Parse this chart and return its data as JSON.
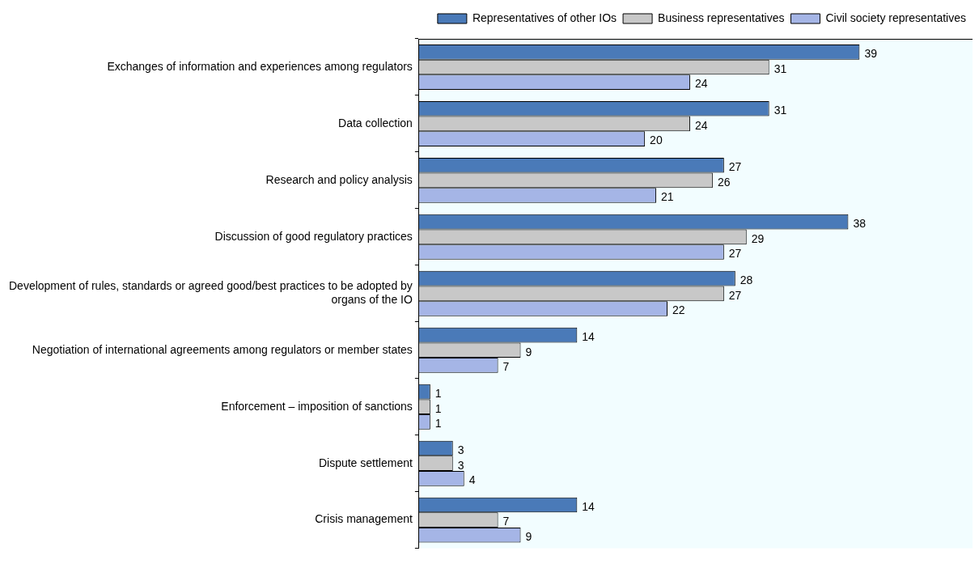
{
  "chart_data": {
    "type": "bar",
    "orientation": "horizontal",
    "categories": [
      "Exchanges of information and experiences among regulators",
      "Data collection",
      "Research and policy analysis",
      "Discussion of good regulatory practices",
      "Development of rules, standards or agreed good/best practices to be adopted by organs of the IO",
      "Negotiation of international agreements among regulators or member states",
      "Enforcement – imposition of sanctions",
      "Dispute settlement",
      "Crisis management"
    ],
    "series": [
      {
        "name": "Representatives of other IOs",
        "color": "#4a7ab8",
        "values": [
          39,
          31,
          27,
          38,
          28,
          14,
          1,
          3,
          14
        ]
      },
      {
        "name": "Business representatives",
        "color": "#c8c8c8",
        "values": [
          31,
          24,
          26,
          29,
          27,
          9,
          1,
          3,
          7
        ]
      },
      {
        "name": "Civil society representatives",
        "color": "#a5b5e6",
        "values": [
          24,
          20,
          21,
          27,
          22,
          7,
          1,
          4,
          9
        ]
      }
    ],
    "xlim": [
      0,
      49
    ],
    "tick_labels": "y",
    "data_labels": true,
    "legend": "top right"
  }
}
